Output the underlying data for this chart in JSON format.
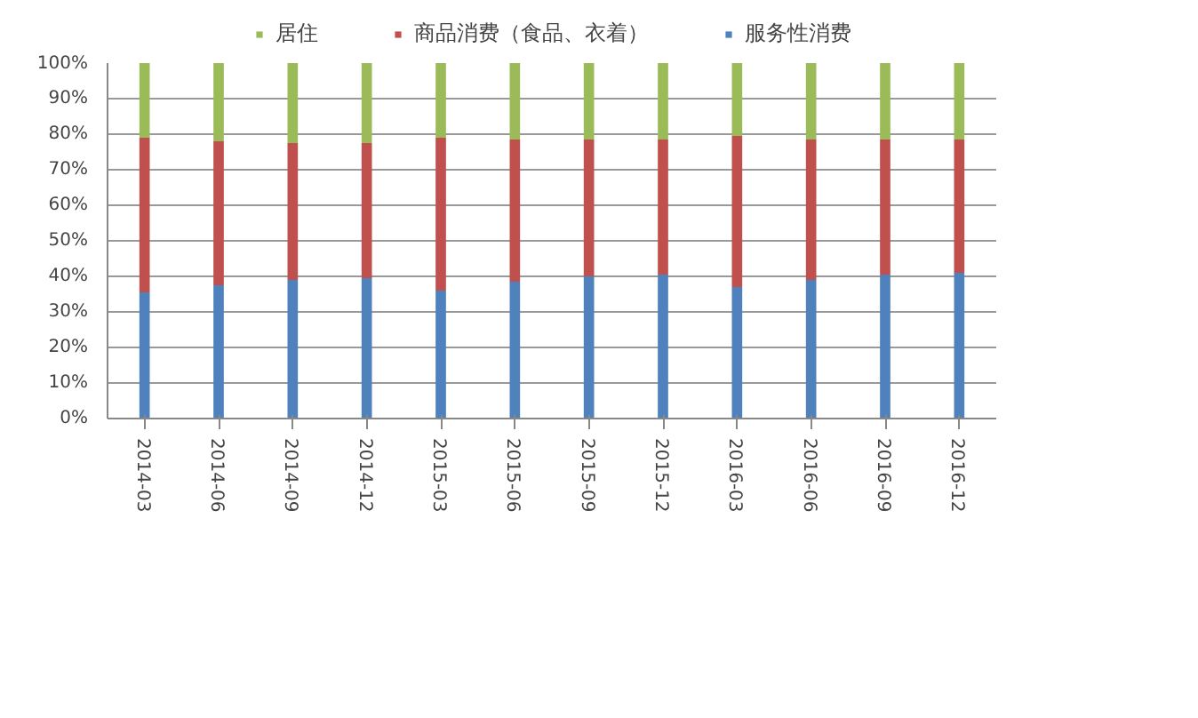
{
  "chart_data": {
    "type": "bar",
    "stacked": true,
    "categories": [
      "2014-03",
      "2014-06",
      "2014-09",
      "2014-12",
      "2015-03",
      "2015-06",
      "2015-09",
      "2015-12",
      "2016-03",
      "2016-06",
      "2016-09",
      "2016-12"
    ],
    "series": [
      {
        "name": "服务性消费",
        "color": "#4f81bd",
        "values": [
          35.5,
          37.5,
          39,
          39.5,
          36,
          38.5,
          40,
          40.5,
          37,
          39,
          40.5,
          41
        ]
      },
      {
        "name": "商品消费（食品、衣着）",
        "color": "#c0504d",
        "values": [
          43.5,
          40.5,
          38.5,
          38,
          43,
          40,
          38.5,
          38,
          42.5,
          39.5,
          38,
          37.5
        ]
      },
      {
        "name": "居住",
        "color": "#9bbb59",
        "values": [
          21,
          22,
          22.5,
          22.5,
          21,
          21.5,
          21.5,
          21.5,
          20.5,
          21.5,
          21.5,
          21.5
        ]
      }
    ],
    "ylim": [
      0,
      100
    ],
    "yticks": [
      {
        "value": 0,
        "label": "0%"
      },
      {
        "value": 10,
        "label": "10%"
      },
      {
        "value": 20,
        "label": "20%"
      },
      {
        "value": 30,
        "label": "30%"
      },
      {
        "value": 40,
        "label": "40%"
      },
      {
        "value": 50,
        "label": "50%"
      },
      {
        "value": 60,
        "label": "60%"
      },
      {
        "value": 70,
        "label": "70%"
      },
      {
        "value": 80,
        "label": "80%"
      },
      {
        "value": 90,
        "label": "90%"
      },
      {
        "value": 100,
        "label": "100%"
      }
    ],
    "grid": "y",
    "legend": "top"
  }
}
